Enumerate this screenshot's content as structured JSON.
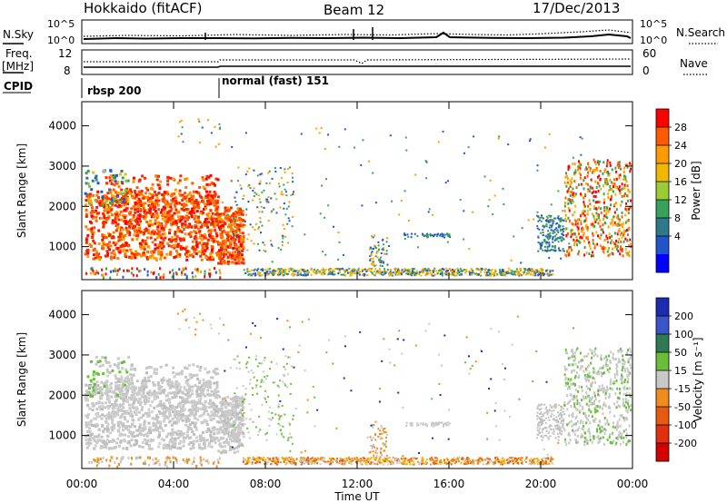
{
  "header": {
    "title": "Hokkaido (fitACF)",
    "beam": "Beam 12",
    "date": "17/Dec/2013"
  },
  "aux_panels": {
    "nsky_label": "N.Sky",
    "nsearch_label": "N.Search",
    "nsky_ticks": [
      "10^5",
      "10^0"
    ],
    "nsearch_ticks": [
      "10^5",
      "10^0"
    ],
    "freq_label_1": "Freq.",
    "freq_label_2": "[MHz]",
    "freq_ticks": [
      "12",
      "8"
    ],
    "nave_label": "Nave",
    "nave_ticks": [
      "60",
      "0"
    ],
    "cpid_label": "CPID",
    "cpid_segments": [
      "rbsp 200",
      "normal (fast) 151"
    ]
  },
  "chart_data": [
    {
      "type": "heatmap",
      "name": "power",
      "ylabel": "Slant Range [km]",
      "ylim": [
        180,
        4600
      ],
      "yticks": [
        1000,
        2000,
        3000,
        4000
      ],
      "xlim": [
        0,
        24
      ],
      "colorbar_label": "Power [dB]",
      "colorbar_ticks": [
        "28",
        "24",
        "20",
        "16",
        "12",
        "8",
        "4"
      ],
      "colorbar_colors": [
        "#ff0000",
        "#ff5a00",
        "#ff9a00",
        "#f2b800",
        "#9ccc33",
        "#3aa15a",
        "#2f7a8a",
        "#2255cc",
        "#0000ff"
      ]
    },
    {
      "type": "heatmap",
      "name": "velocity",
      "ylabel": "Slant Range [km]",
      "ylim": [
        180,
        4600
      ],
      "yticks": [
        1000,
        2000,
        3000,
        4000
      ],
      "xlim": [
        0,
        24
      ],
      "xlabel": "Time UT",
      "xticks": [
        "00:00",
        "04:00",
        "08:00",
        "12:00",
        "16:00",
        "20:00",
        "00:00"
      ],
      "colorbar_label": "Velocity [m s⁻¹]",
      "colorbar_ticks": [
        "200",
        "100",
        "50",
        "15",
        "-15",
        "-50",
        "-100",
        "-200"
      ],
      "colorbar_colors": [
        "#1c2bb0",
        "#3a55c8",
        "#2f7a55",
        "#6abf3a",
        "#c8c8c8",
        "#f08c1c",
        "#e85a10",
        "#e03010",
        "#d40000"
      ]
    }
  ]
}
